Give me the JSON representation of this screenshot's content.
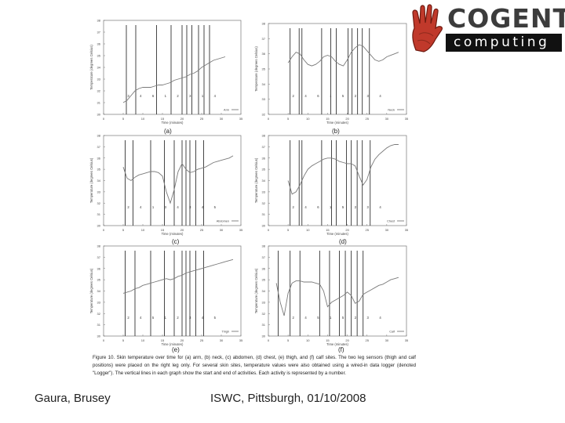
{
  "logo": {
    "line1": "COGENT",
    "line2": "computing"
  },
  "panels": [
    {
      "id": "a",
      "label": "(a)"
    },
    {
      "id": "b",
      "label": "(b)"
    },
    {
      "id": "c",
      "label": "(c)"
    },
    {
      "id": "d",
      "label": "(d)"
    },
    {
      "id": "e",
      "label": "(e)"
    },
    {
      "id": "f",
      "label": "(f)"
    }
  ],
  "caption": "Figure 10. Skin temperature over time for (a) arm, (b) neck, (c) abdomen, (d) chest, (e) thigh, and (f) calf sites. The two leg sensors (thigh and calf positions) were placed on the right leg only. For several skin sites, temperature values were also obtained using a wired-in data logger (denoted \"Logger\"). The vertical lines in each graph show the start and end of activities. Each activity is represented by a number.",
  "footer": {
    "left": "Gaura, Brusey",
    "right": "ISWC, Pittsburgh, 01/10/2008"
  },
  "chart_data": [
    {
      "id": "a",
      "type": "line",
      "xlabel": "Time (minutes)",
      "ylabel": "Temperature (degrees Celsius)",
      "legend": "Arm",
      "xlim": [
        0,
        35
      ],
      "xticks": [
        0,
        5,
        10,
        15,
        20,
        25,
        30,
        35
      ],
      "ylim": [
        30,
        38
      ],
      "yticks": [
        30,
        31,
        32,
        33,
        34,
        35,
        36,
        37,
        38
      ],
      "vlines": [
        5.8,
        8.2,
        13.5,
        17.2,
        20.0,
        21.2,
        22.5,
        24.2,
        25.6,
        27.0
      ],
      "activities": [
        "3",
        "4",
        "6",
        "1",
        "2",
        "3",
        "1",
        "4"
      ],
      "x": [
        5,
        6,
        7,
        8,
        9,
        10,
        11,
        12,
        13,
        14,
        15,
        16,
        17,
        18,
        19,
        20,
        21,
        22,
        23,
        24,
        25,
        26,
        27,
        28,
        29,
        30,
        31
      ],
      "y": [
        31.0,
        31.2,
        31.6,
        32.0,
        32.2,
        32.3,
        32.3,
        32.3,
        32.4,
        32.5,
        32.5,
        32.6,
        32.7,
        32.9,
        33.0,
        33.1,
        33.2,
        33.4,
        33.5,
        33.7,
        34.0,
        34.2,
        34.4,
        34.6,
        34.7,
        34.8,
        34.9
      ]
    },
    {
      "id": "b",
      "type": "line",
      "xlabel": "Time (minutes)",
      "ylabel": "Temperature (degrees Celsius)",
      "legend": "Neck",
      "xlim": [
        0,
        35
      ],
      "xticks": [
        0,
        5,
        10,
        15,
        20,
        25,
        30,
        35
      ],
      "ylim": [
        32,
        38
      ],
      "yticks": [
        32,
        33,
        34,
        35,
        36,
        37,
        38
      ],
      "vlines": [
        5.5,
        7.8,
        8.5,
        13.5,
        15.8,
        17.2,
        20.2,
        21.2,
        22.6,
        23.8,
        25.6
      ],
      "activities": [
        "2",
        "4",
        "6",
        "1",
        "5",
        "2",
        "3",
        "4"
      ],
      "x": [
        5,
        6,
        7,
        8,
        9,
        10,
        11,
        12,
        13,
        14,
        15,
        16,
        17,
        18,
        19,
        20,
        21,
        22,
        23,
        24,
        25,
        26,
        27,
        28,
        29,
        30,
        31,
        32,
        33
      ],
      "y": [
        35.4,
        35.8,
        36.1,
        36.0,
        35.6,
        35.3,
        35.2,
        35.3,
        35.5,
        35.8,
        35.9,
        35.8,
        35.5,
        35.3,
        35.2,
        35.6,
        36.1,
        36.4,
        36.6,
        36.5,
        36.2,
        35.9,
        35.6,
        35.5,
        35.6,
        35.8,
        35.9,
        36.0,
        36.1
      ]
    },
    {
      "id": "c",
      "type": "line",
      "xlabel": "Time (minutes)",
      "ylabel": "Temperature (degrees Celsius)",
      "legend": "Abdomen",
      "xlim": [
        0,
        35
      ],
      "xticks": [
        0,
        5,
        10,
        15,
        20,
        25,
        30,
        35
      ],
      "ylim": [
        30,
        38
      ],
      "yticks": [
        30,
        31,
        32,
        33,
        34,
        35,
        36,
        37,
        38
      ],
      "vlines": [
        5.5,
        7.5,
        12.0,
        15.5,
        18.0,
        20.0,
        21.0,
        22.0,
        23.5,
        25.5
      ],
      "activities": [
        "2",
        "4",
        "1",
        "3",
        "4",
        "3",
        "4",
        "5"
      ],
      "x": [
        5,
        6,
        7,
        8,
        9,
        10,
        11,
        12,
        13,
        14,
        15,
        16,
        17,
        18,
        19,
        20,
        21,
        22,
        23,
        24,
        25,
        26,
        27,
        28,
        29,
        30,
        31,
        32,
        33
      ],
      "y": [
        35.2,
        34.2,
        34.0,
        34.3,
        34.5,
        34.6,
        34.7,
        34.8,
        34.8,
        34.7,
        34.4,
        33.0,
        32.0,
        33.2,
        34.8,
        35.5,
        35.0,
        34.7,
        34.8,
        35.0,
        35.1,
        35.2,
        35.4,
        35.6,
        35.7,
        35.8,
        35.9,
        36.0,
        36.2
      ]
    },
    {
      "id": "d",
      "type": "line",
      "xlabel": "Time (minutes)",
      "ylabel": "Temperature (degrees Celsius)",
      "legend": "Chest",
      "xlim": [
        0,
        35
      ],
      "xticks": [
        0,
        5,
        10,
        15,
        20,
        25,
        30,
        35
      ],
      "ylim": [
        30,
        38
      ],
      "yticks": [
        30,
        31,
        32,
        33,
        34,
        35,
        36,
        37,
        38
      ],
      "vlines": [
        5.5,
        7.8,
        8.5,
        13.5,
        16.0,
        17.2,
        19.8,
        21.0,
        22.5,
        23.8,
        25.8
      ],
      "activities": [
        "2",
        "4",
        "6",
        "1",
        "5",
        "2",
        "3",
        "4"
      ],
      "x": [
        5,
        6,
        7,
        8,
        9,
        10,
        11,
        12,
        13,
        14,
        15,
        16,
        17,
        18,
        19,
        20,
        21,
        22,
        23,
        24,
        25,
        26,
        27,
        28,
        29,
        30,
        31,
        32,
        33
      ],
      "y": [
        34.0,
        32.8,
        33.0,
        33.6,
        34.4,
        35.0,
        35.3,
        35.5,
        35.7,
        35.9,
        36.0,
        36.0,
        35.9,
        35.7,
        35.6,
        35.5,
        35.5,
        35.3,
        34.4,
        33.6,
        34.1,
        35.2,
        35.9,
        36.3,
        36.6,
        36.9,
        37.1,
        37.2,
        37.2
      ]
    },
    {
      "id": "e",
      "type": "line",
      "xlabel": "Time (minutes)",
      "ylabel": "Temperature (degrees Celsius)",
      "legend": "Thigh",
      "xlim": [
        0,
        35
      ],
      "xticks": [
        0,
        5,
        10,
        15,
        20,
        25,
        30,
        35
      ],
      "ylim": [
        30,
        38
      ],
      "yticks": [
        30,
        31,
        32,
        33,
        34,
        35,
        36,
        37,
        38
      ],
      "vlines": [
        5.5,
        8.0,
        12.0,
        15.5,
        18.0,
        20.0,
        21.0,
        22.0,
        23.5,
        25.5
      ],
      "activities": [
        "2",
        "4",
        "5",
        "1",
        "2",
        "3",
        "4",
        "5"
      ],
      "x": [
        5,
        6,
        7,
        8,
        9,
        10,
        11,
        12,
        13,
        14,
        15,
        16,
        17,
        18,
        19,
        20,
        21,
        22,
        23,
        24,
        25,
        26,
        27,
        28,
        29,
        30,
        31,
        32,
        33
      ],
      "y": [
        33.8,
        33.9,
        34.0,
        34.2,
        34.3,
        34.5,
        34.6,
        34.7,
        34.8,
        34.9,
        35.0,
        35.1,
        35.0,
        35.1,
        35.3,
        35.4,
        35.6,
        35.7,
        35.8,
        35.9,
        36.0,
        36.1,
        36.2,
        36.3,
        36.4,
        36.5,
        36.6,
        36.7,
        36.8
      ]
    },
    {
      "id": "f",
      "type": "line",
      "xlabel": "Time (minutes)",
      "ylabel": "Temperature (degrees Celsius)",
      "legend": "Calf",
      "xlim": [
        0,
        35
      ],
      "xticks": [
        0,
        5,
        10,
        15,
        20,
        25,
        30,
        35
      ],
      "ylim": [
        30,
        38
      ],
      "yticks": [
        30,
        31,
        32,
        33,
        34,
        35,
        36,
        37,
        38
      ],
      "vlines": [
        2.5,
        5.5,
        8.0,
        13.0,
        15.5,
        18.0,
        19.5,
        21.0,
        22.5,
        24.0
      ],
      "activities": [
        "2",
        "4",
        "5",
        "1",
        "5",
        "2",
        "3",
        "4"
      ],
      "x": [
        2,
        3,
        4,
        5,
        6,
        7,
        8,
        9,
        10,
        11,
        12,
        13,
        14,
        15,
        16,
        17,
        18,
        19,
        20,
        21,
        22,
        23,
        24,
        25,
        26,
        27,
        28,
        29,
        30,
        31,
        32,
        33
      ],
      "y": [
        34.7,
        33.0,
        31.8,
        33.8,
        34.7,
        34.9,
        34.9,
        34.8,
        34.8,
        34.8,
        34.7,
        34.6,
        34.0,
        32.6,
        33.0,
        33.2,
        33.4,
        33.6,
        33.9,
        33.6,
        32.9,
        33.1,
        33.7,
        33.9,
        34.1,
        34.3,
        34.5,
        34.6,
        34.8,
        35.0,
        35.1,
        35.2
      ]
    }
  ]
}
